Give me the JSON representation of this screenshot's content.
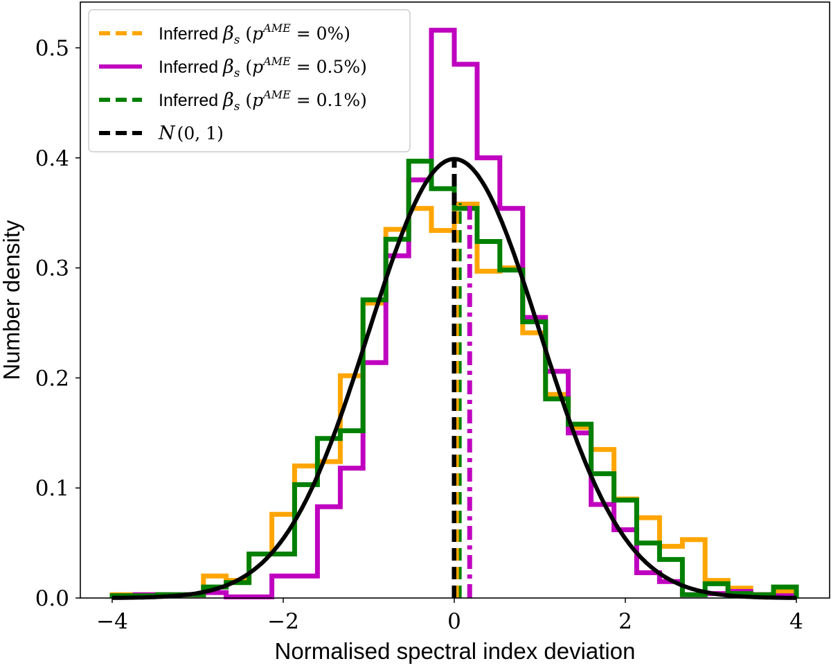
{
  "chart_data": {
    "type": "histogram",
    "xlabel": "Normalised spectral index deviation",
    "ylabel": "Number density",
    "xlim": [
      -4.5,
      4.5
    ],
    "ylim": [
      0.0,
      0.54
    ],
    "xticks": [
      -4,
      -2,
      0,
      2,
      4
    ],
    "xtick_labels": [
      "−4",
      "−2",
      "0",
      "2",
      "4"
    ],
    "yticks": [
      0.0,
      0.1,
      0.2,
      0.3,
      0.4,
      0.5
    ],
    "ytick_labels": [
      "0.0",
      "0.1",
      "0.2",
      "0.3",
      "0.4",
      "0.5"
    ],
    "grid": false,
    "legend_position": "top-left",
    "bin_edges": [
      -4.0,
      -3.733,
      -3.467,
      -3.2,
      -2.933,
      -2.667,
      -2.4,
      -2.133,
      -1.867,
      -1.6,
      -1.333,
      -1.067,
      -0.8,
      -0.533,
      -0.267,
      0.0,
      0.267,
      0.533,
      0.8,
      1.067,
      1.333,
      1.6,
      1.867,
      2.133,
      2.4,
      2.667,
      2.933,
      3.2,
      3.467,
      3.733,
      4.0
    ],
    "series": [
      {
        "name": "Inferred βs (pAME = 0%)",
        "legend": {
          "prefix": "Inferred ",
          "symbol": "β",
          "sub": "s",
          "sup": "AME",
          "value": " = 0%)"
        },
        "color": "#FFA500",
        "style": "dashed",
        "values": [
          0.003,
          0.003,
          0.003,
          0.003,
          0.02,
          0.016,
          0.04,
          0.076,
          0.12,
          0.124,
          0.202,
          0.268,
          0.335,
          0.354,
          0.334,
          0.358,
          0.297,
          0.3,
          0.241,
          0.185,
          0.155,
          0.135,
          0.09,
          0.073,
          0.047,
          0.053,
          0.016,
          0.009,
          0.003,
          0.006
        ],
        "mean": 0.04
      },
      {
        "name": "Inferred βs (pAME = 0.5%)",
        "legend": {
          "prefix": "Inferred ",
          "symbol": "β",
          "sub": "s",
          "sup": "AME",
          "value": " = 0.5%)"
        },
        "color": "#BF00BF",
        "style": "dashdot",
        "values": [
          0.002,
          0.003,
          0.003,
          0.003,
          0.005,
          0.001,
          0.001,
          0.02,
          0.02,
          0.083,
          0.118,
          0.214,
          0.311,
          0.38,
          0.516,
          0.485,
          0.4,
          0.354,
          0.255,
          0.206,
          0.15,
          0.085,
          0.062,
          0.023,
          0.015,
          0.003,
          0.004,
          0.006,
          0.003,
          0.002
        ],
        "mean": 0.18
      },
      {
        "name": "Inferred βs (pAME = 0.1%)",
        "legend": {
          "prefix": "Inferred ",
          "symbol": "β",
          "sub": "s",
          "sup": "AME",
          "value": " = 0.1%)"
        },
        "color": "#008000",
        "style": "dashed",
        "values": [
          0.002,
          0.002,
          0.003,
          0.003,
          0.01,
          0.014,
          0.04,
          0.04,
          0.103,
          0.145,
          0.152,
          0.271,
          0.326,
          0.397,
          0.372,
          0.354,
          0.324,
          0.298,
          0.251,
          0.181,
          0.158,
          0.113,
          0.089,
          0.05,
          0.035,
          0.003,
          0.013,
          0.004,
          0.003,
          0.01
        ],
        "mean": 0.07
      }
    ],
    "reference": {
      "name": "N(0,1)",
      "legend": {
        "script": "N",
        "args": "(0, 1)"
      },
      "color": "#000000",
      "style": "dashed",
      "mean": 0.0,
      "sigma": 1.0
    }
  }
}
